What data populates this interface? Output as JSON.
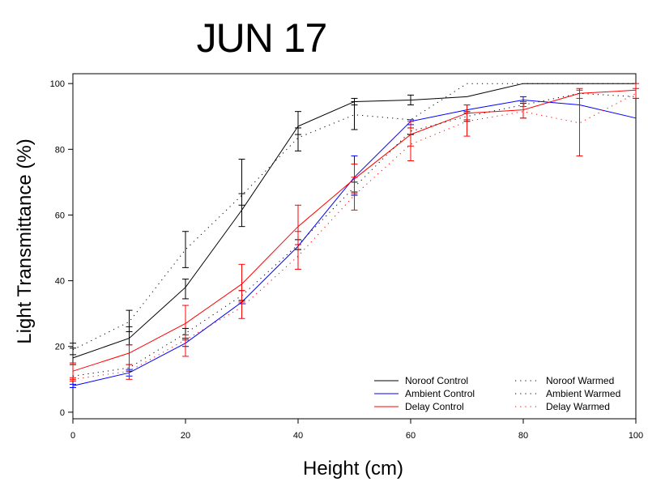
{
  "chart_data": {
    "type": "line",
    "title": "JUN 17",
    "xlabel": "Height (cm)",
    "ylabel": "Light Transmittance (%)",
    "xlim": [
      0,
      100
    ],
    "ylim": [
      -2,
      103
    ],
    "xticks": [
      "0",
      "20",
      "40",
      "60",
      "80",
      "100"
    ],
    "yticks": [
      "0",
      "20",
      "40",
      "60",
      "80",
      "100"
    ],
    "grid": false,
    "legend_position": "bottom-right",
    "x": [
      0,
      10,
      20,
      30,
      40,
      50,
      60,
      70,
      80,
      90,
      100
    ],
    "series": [
      {
        "name": "Noroof Control",
        "color": "#000000",
        "style": "solid",
        "values": [
          16.5,
          22.5,
          38,
          61.5,
          87,
          94.5,
          95,
          96,
          100,
          100,
          100
        ],
        "error": [
          [
            14.5,
            19.5
          ],
          [
            20.5,
            26
          ],
          [
            34.5,
            40.5
          ],
          [
            56.5,
            66.5
          ],
          [
            84.5,
            91.5
          ],
          [
            93.5,
            95.5
          ],
          [
            93.5,
            96.5
          ],
          null,
          null,
          null,
          null
        ]
      },
      {
        "name": "Ambient Control",
        "color": "#0000ff",
        "style": "solid",
        "values": [
          8,
          12,
          21,
          33.5,
          50.5,
          71.5,
          88.5,
          92,
          95,
          93.5,
          89.5
        ],
        "error": [
          [
            7.5,
            8.5
          ],
          [
            11,
            13
          ],
          [
            20,
            22
          ],
          [
            33,
            34
          ],
          [
            49.5,
            51
          ],
          [
            66,
            78
          ],
          [
            87.5,
            89
          ],
          [
            91,
            93.5
          ],
          [
            94,
            96
          ],
          null,
          null
        ]
      },
      {
        "name": "Delay Control",
        "color": "#ff0000",
        "style": "solid",
        "values": [
          12.5,
          18,
          27,
          39,
          56.5,
          71,
          84.5,
          91,
          92,
          97,
          98
        ],
        "error": [
          [
            10,
            15
          ],
          [
            14.5,
            20.5
          ],
          [
            22,
            32.5
          ],
          [
            33.5,
            45
          ],
          [
            51,
            63
          ],
          [
            66.5,
            75.5
          ],
          [
            81,
            88.5
          ],
          [
            89,
            93.5
          ],
          [
            89.5,
            94.5
          ],
          [
            95.5,
            98
          ],
          [
            95.5,
            100
          ]
        ]
      },
      {
        "name": "Noroof Warmed",
        "color": "#000000",
        "style": "dotted",
        "values": [
          19,
          27.5,
          49.5,
          66,
          83.5,
          90.5,
          89,
          100,
          100,
          100,
          100
        ],
        "error": [
          [
            17.5,
            21
          ],
          [
            24.5,
            31
          ],
          [
            44,
            55
          ],
          [
            63,
            77
          ],
          [
            79.5,
            86.5
          ],
          [
            86,
            94.5
          ],
          null,
          null,
          null,
          null,
          null
        ]
      },
      {
        "name": "Ambient Warmed",
        "color": "#000000",
        "style": "dotted",
        "values": [
          11,
          13.5,
          24,
          35.5,
          51,
          68.5,
          85.5,
          90,
          93.5,
          97,
          96
        ],
        "error": [
          null,
          [
            12.5,
            14.5
          ],
          [
            22.5,
            25.5
          ],
          [
            34,
            37
          ],
          [
            49.5,
            52.5
          ],
          [
            67,
            70
          ],
          [
            84.5,
            86.5
          ],
          [
            88.5,
            91.5
          ],
          null,
          null,
          null
        ]
      },
      {
        "name": "Delay Warmed",
        "color": "#ff0000",
        "style": "dotted",
        "values": [
          10,
          12.5,
          22,
          32,
          47.5,
          66,
          81.5,
          88.5,
          91.5,
          88,
          97
        ],
        "error": [
          [
            9.5,
            10.5
          ],
          [
            10,
            14.5
          ],
          [
            17,
            23.5
          ],
          [
            28.5,
            37
          ],
          [
            43.5,
            55
          ],
          [
            61.5,
            71.5
          ],
          [
            76.5,
            86.5
          ],
          [
            84,
            91.5
          ],
          [
            89.5,
            93
          ],
          [
            78,
            98.5
          ],
          [
            95.5,
            98.5
          ]
        ]
      }
    ]
  },
  "legend": {
    "items": [
      {
        "label": "Noroof Control"
      },
      {
        "label": "Ambient Control"
      },
      {
        "label": "Delay Control"
      },
      {
        "label": "Noroof Warmed"
      },
      {
        "label": "Ambient Warmed"
      },
      {
        "label": "Delay Warmed"
      }
    ]
  }
}
